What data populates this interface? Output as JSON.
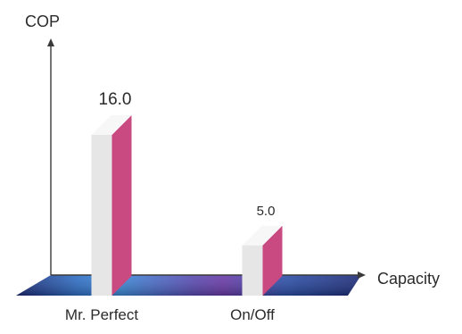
{
  "chart_data": {
    "type": "bar",
    "title": "",
    "ylabel": "COP",
    "xlabel": "Capacity",
    "categories": [
      "Mr. Perfect",
      "On/Off"
    ],
    "values": [
      16.0,
      5.0
    ],
    "value_labels": [
      "16.0",
      "5.0"
    ],
    "ylim": [
      0,
      18
    ],
    "grid": false,
    "legend": "none",
    "colors": {
      "bar_front": "#e6e6e6",
      "bar_side": "#c94a80",
      "bar_top": "#f7f7f7",
      "floor_dark": "#1d2b78",
      "floor_mid": "#2f7fd0",
      "floor_accent": "#6a3aa8",
      "axis": "#3a3a3a"
    }
  }
}
